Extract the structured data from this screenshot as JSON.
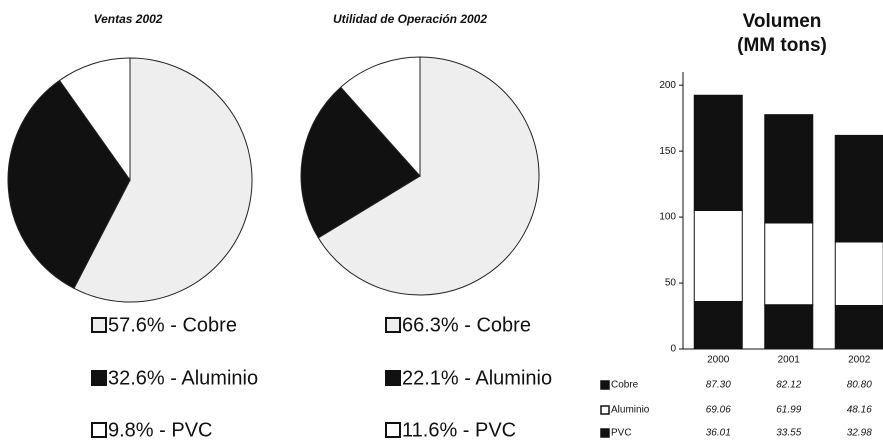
{
  "chart_data": [
    {
      "type": "pie",
      "title": "Ventas 2002",
      "values": [
        57.6,
        32.6,
        9.8
      ],
      "value_labels": [
        "57.6% - Cobre",
        "32.6% - Aluminio",
        "9.8% - PVC"
      ],
      "colors": [
        "#eeeeee",
        "#111111",
        "#ffffff"
      ]
    },
    {
      "type": "pie",
      "title": "Utilidad de Operación 2002",
      "values": [
        66.3,
        22.1,
        11.6
      ],
      "value_labels": [
        "66.3% - Cobre",
        "22.1% - Aluminio",
        "11.6% - PVC"
      ],
      "colors": [
        "#eeeeee",
        "#111111",
        "#ffffff"
      ]
    },
    {
      "type": "stacked_bar",
      "title": "Volumen",
      "subtitle": "(MM tons)",
      "categories": [
        "2000",
        "2001",
        "2002"
      ],
      "series": [
        {
          "name": "Cobre",
          "color": "#111111",
          "values": [
            87.3,
            82.12,
            80.8
          ],
          "value_labels": [
            "87.30",
            "82.12",
            "80.80"
          ]
        },
        {
          "name": "Aluminio",
          "color": "#ffffff",
          "values": [
            69.06,
            61.99,
            48.16
          ],
          "value_labels": [
            "69.06",
            "61.99",
            "48.16"
          ]
        },
        {
          "name": "PVC",
          "color": "#111111",
          "values": [
            36.01,
            33.55,
            32.98
          ],
          "value_labels": [
            "36.01",
            "33.55",
            "32.98"
          ]
        }
      ],
      "ylim": [
        0,
        210
      ],
      "yticks": [
        0,
        50,
        100,
        150,
        200
      ]
    }
  ]
}
